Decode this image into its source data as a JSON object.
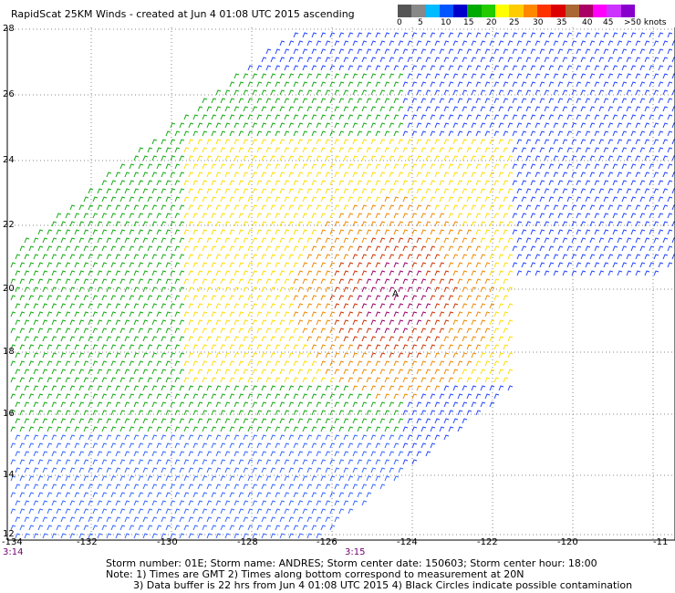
{
  "title": "RapidScat 25KM Winds - created at Jun  4 01:08 UTC 2015 ascending",
  "legend": {
    "colors": [
      "#555555",
      "#888888",
      "#00bbff",
      "#0055ff",
      "#0000cc",
      "#00aa00",
      "#22cc00",
      "#ffff00",
      "#ffcc00",
      "#ff8800",
      "#ff3300",
      "#dd0000",
      "#aa6633",
      "#aa0066",
      "#ff00ff",
      "#cc33ff",
      "#8800cc"
    ],
    "labels": [
      "0",
      "5",
      "10",
      "15",
      "20",
      "25",
      "30",
      "35",
      "40",
      "45",
      ">50 knots"
    ]
  },
  "axes": {
    "lat_labels": [
      "28",
      "26",
      "24",
      "22",
      "20",
      "18",
      "16",
      "14",
      "12"
    ],
    "lon_labels": [
      "-134",
      "-132",
      "-130",
      "-128",
      "-126",
      "-124",
      "-122",
      "-120",
      "-11"
    ]
  },
  "times": {
    "left": "3:14",
    "mid": "3:15"
  },
  "storm": {
    "marker": "A"
  },
  "footer": {
    "line1": "Storm number: 01E;  Storm name: ANDRES;  Storm center date: 150603;  Storm center hour: 18:00",
    "line2": "Note: 1) Times are GMT  2) Times along bottom correspond to measurement at 20N",
    "line3": "3) Data buffer is 22 hrs from Jun  4 01:08 UTC 2015  4) Black Circles indicate possible contamination"
  }
}
